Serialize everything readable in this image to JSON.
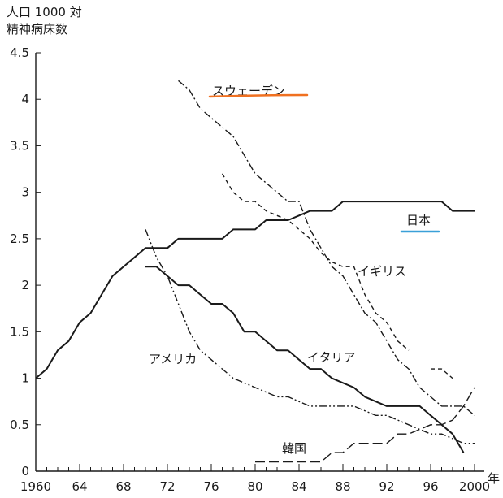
{
  "chart_data": {
    "type": "line",
    "title": "",
    "ylabel": [
      "人口 1000 対",
      "精神病床数"
    ],
    "xlabel": "年",
    "xlim": [
      1960,
      2000
    ],
    "ylim": [
      0,
      4.5
    ],
    "x_ticks": [
      1960,
      1964,
      1968,
      1972,
      1976,
      1980,
      1984,
      1988,
      1992,
      1996,
      2000
    ],
    "x_tick_labels": [
      "1960",
      "64",
      "68",
      "72",
      "76",
      "80",
      "84",
      "88",
      "92",
      "96",
      "2000"
    ],
    "y_ticks": [
      0,
      0.5,
      1,
      1.5,
      2,
      2.5,
      3,
      3.5,
      4,
      4.5
    ],
    "y_tick_labels": [
      "0",
      "0.5",
      "1",
      "1.5",
      "2",
      "2.5",
      "3",
      "3.5",
      "4",
      "4.5"
    ],
    "grid": false,
    "legend": "inline labels",
    "series": [
      {
        "name": "日本",
        "style": "solid",
        "x": [
          1960,
          1961,
          1962,
          1963,
          1964,
          1965,
          1966,
          1967,
          1968,
          1969,
          1970,
          1971,
          1972,
          1973,
          1974,
          1975,
          1976,
          1977,
          1978,
          1979,
          1980,
          1981,
          1982,
          1983,
          1984,
          1985,
          1986,
          1987,
          1988,
          1989,
          1990,
          1991,
          1992,
          1993,
          1994,
          1995,
          1996,
          1997,
          1998,
          1999,
          2000
        ],
        "values": [
          1.0,
          1.1,
          1.3,
          1.4,
          1.6,
          1.7,
          1.9,
          2.1,
          2.2,
          2.3,
          2.4,
          2.4,
          2.4,
          2.5,
          2.5,
          2.5,
          2.5,
          2.5,
          2.6,
          2.6,
          2.6,
          2.7,
          2.7,
          2.7,
          2.75,
          2.8,
          2.8,
          2.8,
          2.9,
          2.9,
          2.9,
          2.9,
          2.9,
          2.9,
          2.9,
          2.9,
          2.9,
          2.9,
          2.8,
          2.8,
          2.8
        ]
      },
      {
        "name": "スウェーデン",
        "style": "dashdot",
        "x": [
          1973,
          1974,
          1975,
          1976,
          1977,
          1978,
          1979,
          1980,
          1981,
          1982,
          1983,
          1984,
          1985,
          1986,
          1987,
          1988,
          1989,
          1990,
          1991,
          1992,
          1993,
          1994,
          1995,
          1996,
          1997,
          1998,
          1999,
          2000
        ],
        "values": [
          4.2,
          4.1,
          3.9,
          3.8,
          3.7,
          3.6,
          3.4,
          3.2,
          3.1,
          3.0,
          2.9,
          2.9,
          2.6,
          2.4,
          2.2,
          2.1,
          1.9,
          1.7,
          1.6,
          1.4,
          1.2,
          1.1,
          0.9,
          0.8,
          0.7,
          0.7,
          0.7,
          0.6
        ]
      },
      {
        "name": "イギリス",
        "style": "dashed",
        "x": [
          1977,
          1978,
          1979,
          1980,
          1981,
          1982,
          1983,
          1984,
          1985,
          1986,
          1987,
          1988,
          1989,
          1990,
          1991,
          1992,
          1993,
          1994,
          1995,
          1996,
          1997,
          1998
        ],
        "values": [
          3.2,
          3.0,
          2.9,
          2.9,
          2.8,
          2.75,
          2.7,
          2.6,
          2.5,
          2.35,
          2.25,
          2.2,
          2.2,
          1.9,
          1.7,
          1.6,
          1.4,
          1.3,
          null,
          1.1,
          1.1,
          1.0
        ]
      },
      {
        "name": "アメリカ",
        "style": "dashdotdot",
        "x": [
          1970,
          1971,
          1972,
          1973,
          1974,
          1975,
          1976,
          1977,
          1978,
          1979,
          1980,
          1981,
          1982,
          1983,
          1984,
          1985,
          1986,
          1987,
          1988,
          1989,
          1990,
          1991,
          1992,
          1993,
          1994,
          1995,
          1996,
          1997,
          1998,
          1999,
          2000
        ],
        "values": [
          2.6,
          2.3,
          2.1,
          1.8,
          1.5,
          1.3,
          1.2,
          1.1,
          1.0,
          0.95,
          0.9,
          0.85,
          0.8,
          0.8,
          0.75,
          0.7,
          0.7,
          0.7,
          0.7,
          0.7,
          0.65,
          0.6,
          0.6,
          0.55,
          0.5,
          0.45,
          0.4,
          0.4,
          0.35,
          0.3,
          0.3
        ]
      },
      {
        "name": "イタリア",
        "style": "solid",
        "x": [
          1970,
          1971,
          1972,
          1973,
          1974,
          1975,
          1976,
          1977,
          1978,
          1979,
          1980,
          1981,
          1982,
          1983,
          1984,
          1985,
          1986,
          1987,
          1988,
          1989,
          1990,
          1991,
          1992,
          1993,
          1994,
          1995,
          1996,
          1997,
          1998,
          1999
        ],
        "values": [
          2.2,
          2.2,
          2.1,
          2.0,
          2.0,
          1.9,
          1.8,
          1.8,
          1.7,
          1.5,
          1.5,
          1.4,
          1.3,
          1.3,
          1.2,
          1.1,
          1.1,
          1.0,
          0.95,
          0.9,
          0.8,
          0.75,
          0.7,
          0.7,
          0.7,
          0.7,
          0.6,
          0.5,
          0.4,
          0.2
        ]
      },
      {
        "name": "韓国",
        "style": "longdash",
        "x": [
          1980,
          1982,
          1984,
          1986,
          1987,
          1988,
          1989,
          1990,
          1991,
          1992,
          1993,
          1994,
          1995,
          1996,
          1997,
          1998,
          1999,
          2000
        ],
        "values": [
          0.1,
          0.1,
          0.1,
          0.1,
          0.2,
          0.2,
          0.3,
          0.3,
          0.3,
          0.3,
          0.4,
          0.4,
          0.45,
          0.5,
          0.5,
          0.55,
          0.7,
          0.9
        ]
      }
    ],
    "annotations": [
      {
        "text": "スウェーデン",
        "series": "スウェーデン"
      },
      {
        "text": "日本",
        "series": "日本"
      },
      {
        "text": "イギリス",
        "series": "イギリス"
      },
      {
        "text": "アメリカ",
        "series": "アメリカ"
      },
      {
        "text": "イタリア",
        "series": "イタリア"
      },
      {
        "text": "韓国",
        "series": "韓国"
      }
    ],
    "colors": {
      "line": "#1a1a1a",
      "underline_sweden": "#f07020",
      "underline_japan": "#3aa0d8"
    }
  }
}
